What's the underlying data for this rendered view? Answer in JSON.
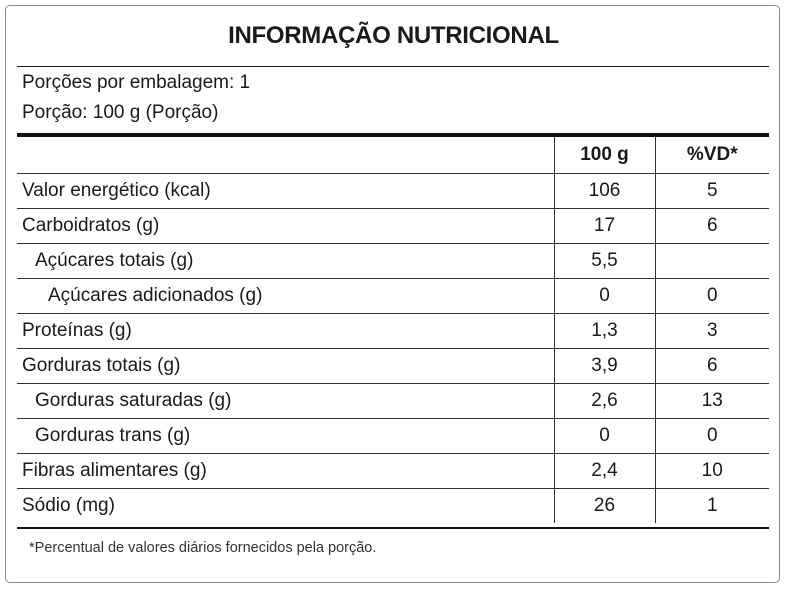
{
  "title": "INFORMAÇÃO NUTRICIONAL",
  "servings_per_package": "Porções por embalagem: 1",
  "serving_size": "Porção: 100 g (Porção)",
  "table": {
    "headers": [
      "",
      "100 g",
      "%VD*"
    ],
    "rows": [
      {
        "name": "Valor energético (kcal)",
        "amount": "106",
        "dv": "5",
        "indent": 0
      },
      {
        "name": "Carboidratos (g)",
        "amount": "17",
        "dv": "6",
        "indent": 0
      },
      {
        "name": "Açúcares totais (g)",
        "amount": "5,5",
        "dv": "",
        "indent": 1
      },
      {
        "name": "Açúcares adicionados (g)",
        "amount": "0",
        "dv": "0",
        "indent": 2
      },
      {
        "name": "Proteínas (g)",
        "amount": "1,3",
        "dv": "3",
        "indent": 0
      },
      {
        "name": "Gorduras totais (g)",
        "amount": "3,9",
        "dv": "6",
        "indent": 0
      },
      {
        "name": "Gorduras saturadas (g)",
        "amount": "2,6",
        "dv": "13",
        "indent": 1
      },
      {
        "name": "Gorduras trans (g)",
        "amount": "0",
        "dv": "0",
        "indent": 1
      },
      {
        "name": "Fibras alimentares (g)",
        "amount": "2,4",
        "dv": "10",
        "indent": 0
      },
      {
        "name": "Sódio (mg)",
        "amount": "26",
        "dv": "1",
        "indent": 0
      }
    ]
  },
  "footnote": "*Percentual de valores diários fornecidos pela porção."
}
